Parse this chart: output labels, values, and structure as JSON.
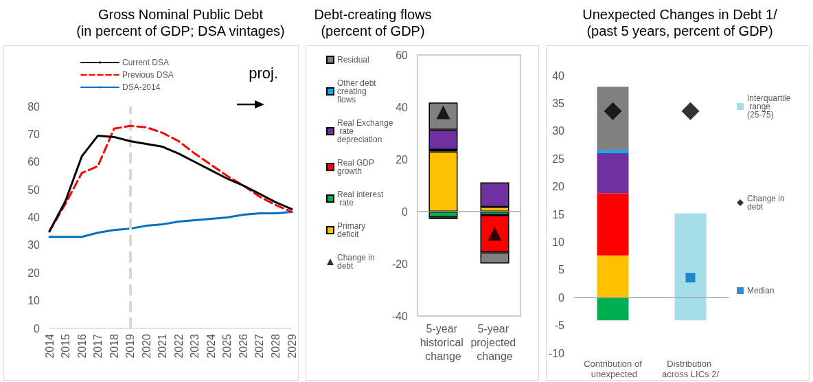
{
  "chart_data": [
    {
      "type": "line",
      "title": "Gross Nominal Public Debt",
      "subtitle": "(in percent of GDP; DSA vintages)",
      "categories": [
        "2014",
        "2015",
        "2016",
        "2017",
        "2018",
        "2019",
        "2020",
        "2021",
        "2022",
        "2023",
        "2024",
        "2025",
        "2026",
        "2027",
        "2028",
        "2029"
      ],
      "series": [
        {
          "name": "Current DSA",
          "color": "#000000",
          "values": [
            35,
            46,
            62,
            69.5,
            69,
            67.5,
            66.5,
            65.5,
            63,
            60,
            57,
            54,
            51.5,
            48.5,
            45.5,
            43
          ]
        },
        {
          "name": "Previous DSA",
          "color": "#ff0000",
          "line_style": "dashed",
          "values": [
            35,
            45,
            56,
            58.5,
            72,
            73,
            72.5,
            70.5,
            67.5,
            63,
            59,
            55,
            51.5,
            47.5,
            44.5,
            42
          ]
        },
        {
          "name": "DSA-2014",
          "color": "#0070c0",
          "values": [
            33,
            33,
            33,
            34.5,
            35.5,
            36,
            37,
            37.5,
            38.5,
            39,
            39.5,
            40,
            41,
            41.5,
            41.5,
            42
          ]
        }
      ],
      "ylim": [
        0,
        80
      ],
      "yticks": [
        0,
        10,
        20,
        30,
        40,
        50,
        60,
        70,
        80
      ],
      "marker": "none",
      "line_style": "solid",
      "grid": false,
      "legend": "top left",
      "ref_lines": [
        {
          "axis": "x",
          "value": "2019",
          "color": "#d9d9d9",
          "line_style": "dashed"
        }
      ],
      "annotations": [
        "proj."
      ]
    },
    {
      "type": "bar",
      "title": "Debt-creating flows",
      "subtitle": "(percent of GDP)",
      "categories": [
        "5-year historical change",
        "5-year projected change"
      ],
      "stacked": true,
      "series": [
        {
          "name": "Primary deficit",
          "color": "#ffc000",
          "values": [
            23,
            1.8
          ]
        },
        {
          "name": "Real interest rate",
          "color": "#00b050",
          "values": [
            -2.2,
            -1.3
          ]
        },
        {
          "name": "Real GDP growth",
          "color": "#ff0000",
          "values": [
            0.7,
            -14.3
          ]
        },
        {
          "name": "Real Exchange rate depreciation",
          "color": "#7030a0",
          "values": [
            7.7,
            9.4
          ]
        },
        {
          "name": "Other debt creating flows",
          "color": "#00b0f0",
          "values": [
            -0.6,
            null
          ]
        },
        {
          "name": "Residual",
          "color": "#808080",
          "values": [
            10.4,
            -4.3
          ]
        },
        {
          "name": "Change in debt",
          "type": "scatter",
          "marker": "triangle",
          "color": "#000000",
          "x": [
            "5-year historical change",
            "5-year projected change"
          ],
          "values": [
            38,
            -8.5
          ]
        }
      ],
      "ylim": [
        -40,
        60
      ],
      "yticks": [
        -40,
        -20,
        0,
        20,
        40,
        60
      ],
      "grid": false,
      "legend": "left",
      "ref_lines": [
        {
          "axis": "y",
          "value": 0,
          "color": "#a6a6a6"
        }
      ]
    },
    {
      "type": "bar",
      "title": "Unexpected Changes in Debt 1/",
      "subtitle": "(past 5 years, percent of GDP)",
      "categories": [
        "Contribution of unexpected",
        "Distribution across LICs 2/"
      ],
      "stacked": true,
      "series": [
        {
          "color": "#ffc000",
          "values": [
            7.6,
            null
          ]
        },
        {
          "color": "#00b050",
          "values": [
            -4.1,
            null
          ]
        },
        {
          "color": "#ff0000",
          "values": [
            11.2,
            null
          ]
        },
        {
          "color": "#7030a0",
          "values": [
            7.2,
            null
          ]
        },
        {
          "color": "#00b0f0",
          "values": [
            0.5,
            null
          ]
        },
        {
          "color": "#808080",
          "values": [
            11.5,
            null
          ]
        },
        {
          "name": "Interquartile range (25-75)",
          "color": "#a5dde8",
          "base": [
            null,
            -4.1
          ],
          "values": [
            null,
            19.3
          ]
        },
        {
          "name": "Change in debt",
          "type": "scatter",
          "marker": "diamond",
          "color": "#000000",
          "x": [
            "Contribution of unexpected",
            "Distribution across LICs 2/"
          ],
          "values": [
            33.6,
            33.6
          ]
        },
        {
          "name": "Median",
          "type": "scatter",
          "marker": "square",
          "color": "#0070c0",
          "x": [
            "Distribution across LICs 2/"
          ],
          "values": [
            3.6
          ]
        }
      ],
      "ylim": [
        -10,
        40
      ],
      "yticks": [
        -10,
        -5,
        0,
        5,
        10,
        15,
        20,
        25,
        30,
        35,
        40
      ],
      "grid": false,
      "legend": "right",
      "ref_lines": [
        {
          "axis": "y",
          "value": 0,
          "color": "#a6a6a6"
        }
      ]
    }
  ]
}
